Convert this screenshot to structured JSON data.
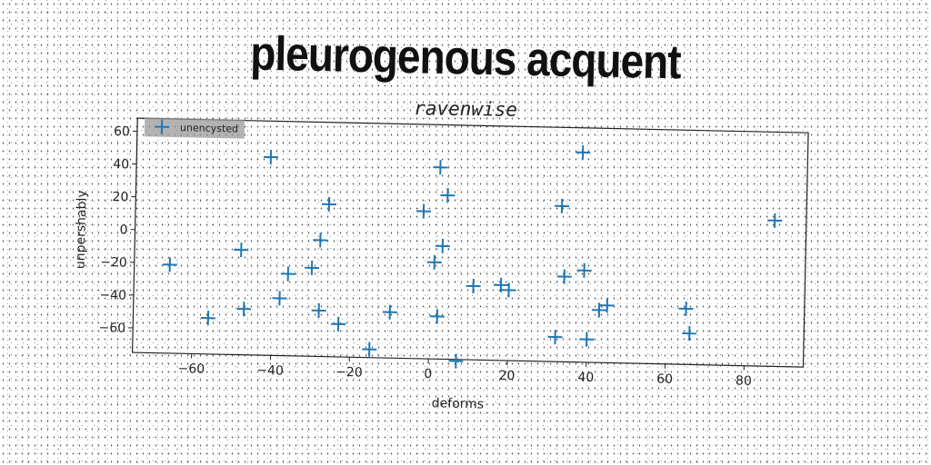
{
  "title": "pleurogenous acquent",
  "chart_data": {
    "type": "scatter",
    "title": "ravenwise",
    "xlabel": "deforms",
    "ylabel": "unpershably",
    "xlim": [
      -75,
      95
    ],
    "ylim": [
      -75,
      68
    ],
    "xticks": [
      -60,
      -40,
      -20,
      0,
      20,
      40,
      60,
      80
    ],
    "yticks": [
      -60,
      -40,
      -20,
      0,
      20,
      40,
      60
    ],
    "legend_placement": "top-left",
    "grid": false,
    "marker_color": "#1f77b4",
    "series": [
      {
        "name": "unencysted",
        "marker": "+",
        "points": [
          [
            -66,
            -21
          ],
          [
            -56,
            -53
          ],
          [
            -48,
            -11
          ],
          [
            -47,
            -47
          ],
          [
            -41,
            46
          ],
          [
            -38,
            -40
          ],
          [
            -36,
            -25
          ],
          [
            -30,
            -21
          ],
          [
            -28,
            -47
          ],
          [
            -28,
            -4
          ],
          [
            -26,
            18
          ],
          [
            -23,
            -55
          ],
          [
            -15,
            -70
          ],
          [
            -10,
            -47
          ],
          [
            -2,
            15
          ],
          [
            1,
            -16
          ],
          [
            2,
            42
          ],
          [
            2,
            -49
          ],
          [
            3,
            -6
          ],
          [
            4,
            25
          ],
          [
            7,
            -76
          ],
          [
            11,
            -30
          ],
          [
            18,
            -29
          ],
          [
            20,
            -32
          ],
          [
            32,
            -60
          ],
          [
            33,
            20
          ],
          [
            34,
            -23
          ],
          [
            38,
            53
          ],
          [
            39,
            -19
          ],
          [
            40,
            -61
          ],
          [
            43,
            -43
          ],
          [
            45,
            -40
          ],
          [
            65,
            -41
          ],
          [
            66,
            -56
          ],
          [
            87,
            14
          ]
        ]
      }
    ]
  }
}
